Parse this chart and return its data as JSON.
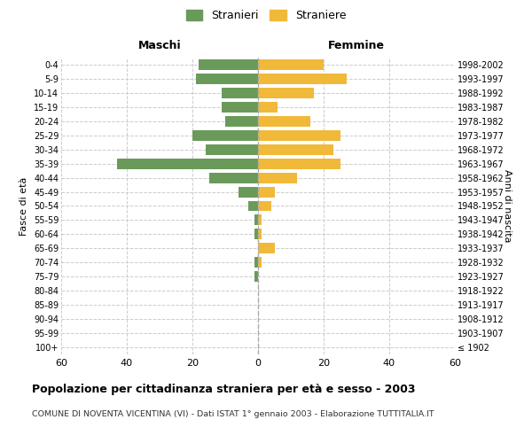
{
  "age_groups": [
    "100+",
    "95-99",
    "90-94",
    "85-89",
    "80-84",
    "75-79",
    "70-74",
    "65-69",
    "60-64",
    "55-59",
    "50-54",
    "45-49",
    "40-44",
    "35-39",
    "30-34",
    "25-29",
    "20-24",
    "15-19",
    "10-14",
    "5-9",
    "0-4"
  ],
  "birth_years": [
    "≤ 1902",
    "1903-1907",
    "1908-1912",
    "1913-1917",
    "1918-1922",
    "1923-1927",
    "1928-1932",
    "1933-1937",
    "1938-1942",
    "1943-1947",
    "1948-1952",
    "1953-1957",
    "1958-1962",
    "1963-1967",
    "1968-1972",
    "1973-1977",
    "1978-1982",
    "1983-1987",
    "1988-1992",
    "1993-1997",
    "1998-2002"
  ],
  "males": [
    0,
    0,
    0,
    0,
    0,
    1,
    1,
    0,
    1,
    1,
    3,
    6,
    15,
    43,
    16,
    20,
    10,
    11,
    11,
    19,
    18
  ],
  "females": [
    0,
    0,
    0,
    0,
    0,
    0,
    1,
    5,
    1,
    1,
    4,
    5,
    12,
    25,
    23,
    25,
    16,
    6,
    17,
    27,
    20
  ],
  "male_color": "#6a9a5a",
  "female_color": "#f0b93a",
  "xlim": 60,
  "grid_color": "#cccccc",
  "background_color": "#ffffff",
  "title": "Popolazione per cittadinanza straniera per età e sesso - 2003",
  "subtitle": "COMUNE DI NOVENTA VICENTINA (VI) - Dati ISTAT 1° gennaio 2003 - Elaborazione TUTTITALIA.IT",
  "ylabel_left": "Fasce di età",
  "ylabel_right": "Anni di nascita",
  "legend_male": "Stranieri",
  "legend_female": "Straniere",
  "maschi_label": "Maschi",
  "femmine_label": "Femmine"
}
